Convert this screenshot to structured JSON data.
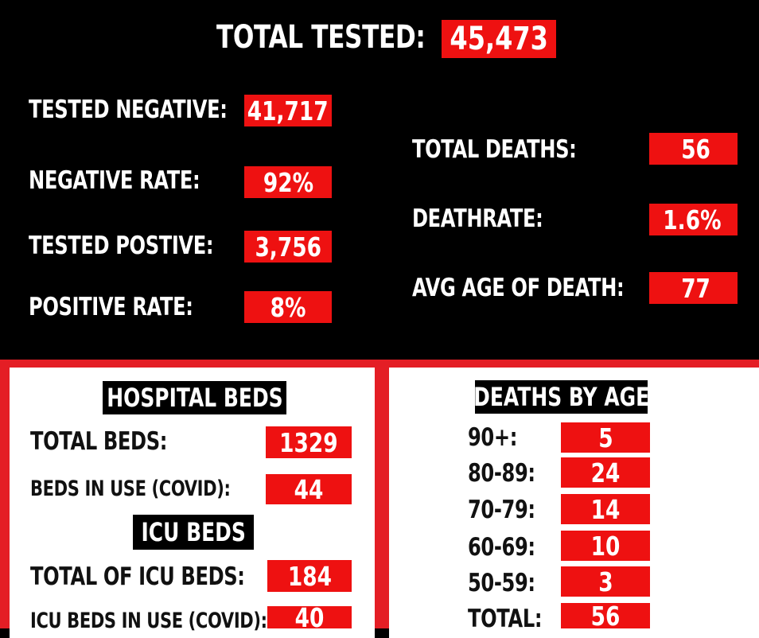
{
  "total_tested": {
    "label": "TOTAL TESTED:",
    "value": "45,473"
  },
  "tests": {
    "tested_negative": {
      "label": "TESTED NEGATIVE:",
      "value": "41,717"
    },
    "negative_rate": {
      "label": "NEGATIVE RATE:",
      "value": "92%"
    },
    "tested_positive": {
      "label": "TESTED POSTIVE:",
      "value": "3,756"
    },
    "positive_rate": {
      "label": "POSITIVE RATE:",
      "value": "8%"
    }
  },
  "deaths": {
    "total_deaths": {
      "label": "TOTAL DEATHS:",
      "value": "56"
    },
    "deathrate": {
      "label": "DEATHRATE:",
      "value": "1.6%"
    },
    "avg_age": {
      "label": "AVG AGE OF DEATH:",
      "value": "77"
    }
  },
  "hospital": {
    "header": "HOSPITAL BEDS",
    "total_beds": {
      "label": "TOTAL BEDS:",
      "value": "1329"
    },
    "beds_in_use": {
      "label": "BEDS IN USE (COVID):",
      "value": "44"
    },
    "icu_header": "ICU BEDS",
    "total_icu": {
      "label": "TOTAL OF ICU BEDS:",
      "value": "184"
    },
    "icu_in_use": {
      "label": "ICU BEDS IN USE (COVID):",
      "value": "40"
    }
  },
  "deaths_by_age": {
    "header": "DEATHS BY AGE",
    "rows": [
      {
        "label": "90+:",
        "value": "5"
      },
      {
        "label": "80-89:",
        "value": "24"
      },
      {
        "label": "70-79:",
        "value": "14"
      },
      {
        "label": "60-69:",
        "value": "10"
      },
      {
        "label": "50-59:",
        "value": "3"
      },
      {
        "label": "TOTAL:",
        "value": "56"
      }
    ]
  },
  "colors": {
    "accent_red": "#ee1111",
    "frame_red": "#e41e25",
    "background": "#000000",
    "panel": "#ffffff"
  }
}
